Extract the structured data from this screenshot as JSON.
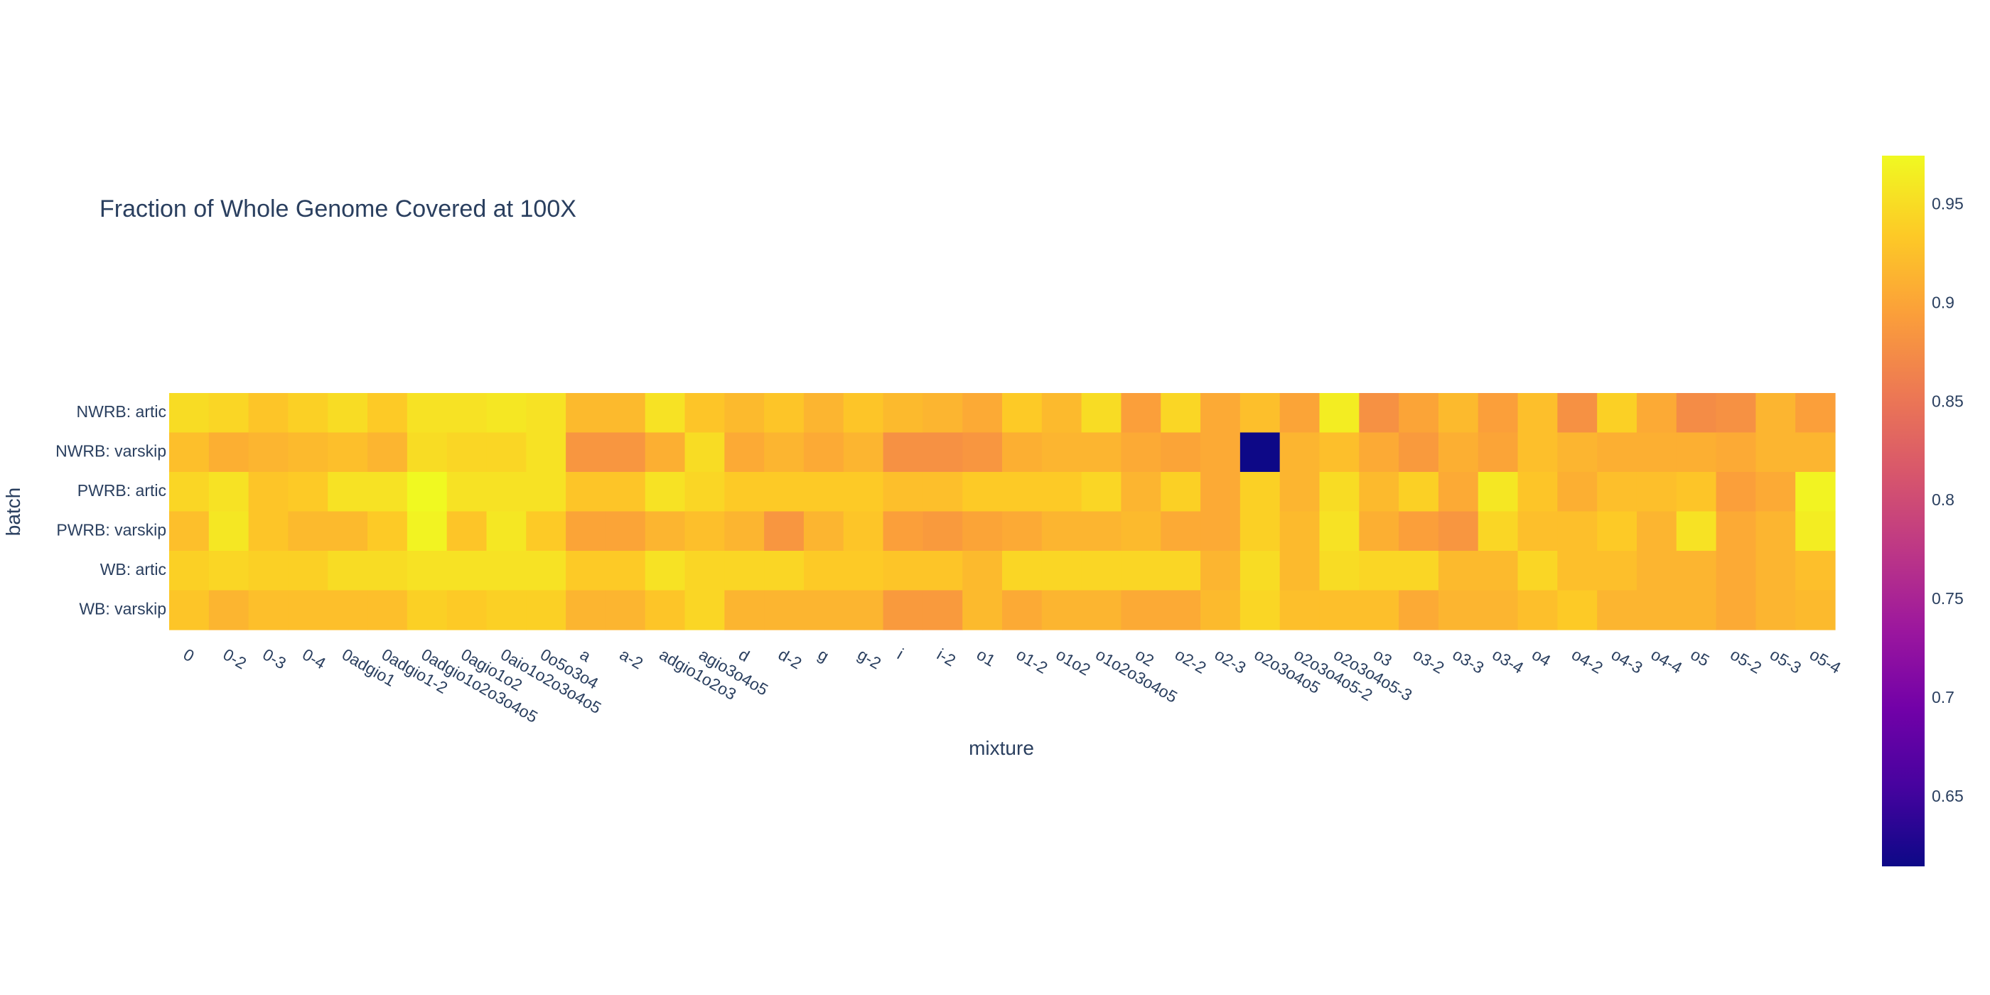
{
  "chart_data": {
    "type": "heatmap",
    "title": "Fraction of Whole Genome Covered at 100X",
    "xlabel": "mixture",
    "ylabel": "batch",
    "x": [
      "0",
      "0-2",
      "0-3",
      "0-4",
      "0adgio1",
      "0adgio1-2",
      "0adgio1o2o3o4o5",
      "0agio1o2",
      "0aio1o2o3o4o5",
      "0o5o3o4",
      "a",
      "a-2",
      "adgio1o2o3",
      "agio3o4o5",
      "d",
      "d-2",
      "g",
      "g-2",
      "i",
      "i-2",
      "o1",
      "o1-2",
      "o1o2",
      "o1o2o3o4o5",
      "o2",
      "o2-2",
      "o2-3",
      "o2o3o4o5",
      "o2o3o4o5-2",
      "o2o3o4o5-3",
      "o3",
      "o3-2",
      "o3-3",
      "o3-4",
      "o4",
      "o4-2",
      "o4-3",
      "o4-4",
      "o5",
      "o5-2",
      "o5-3",
      "o5-4"
    ],
    "y": [
      "NWRB: artic",
      "NWRB: varskip",
      "PWRB: artic",
      "PWRB: varskip",
      "WB: artic",
      "WB: varskip"
    ],
    "z": [
      [
        0.95,
        0.945,
        0.93,
        0.94,
        0.95,
        0.935,
        0.955,
        0.955,
        0.96,
        0.955,
        0.92,
        0.92,
        0.955,
        0.93,
        0.92,
        0.93,
        0.915,
        0.93,
        0.92,
        0.915,
        0.905,
        0.935,
        0.92,
        0.95,
        0.895,
        0.945,
        0.905,
        0.925,
        0.9,
        0.965,
        0.88,
        0.9,
        0.92,
        0.895,
        0.925,
        0.88,
        0.94,
        0.905,
        0.875,
        0.88,
        0.915,
        0.895
      ],
      [
        0.925,
        0.91,
        0.915,
        0.92,
        0.925,
        0.915,
        0.95,
        0.945,
        0.945,
        0.955,
        0.885,
        0.885,
        0.91,
        0.95,
        0.905,
        0.915,
        0.905,
        0.915,
        0.88,
        0.88,
        0.885,
        0.91,
        0.915,
        0.915,
        0.905,
        0.9,
        0.905,
        0.615,
        0.915,
        0.925,
        0.905,
        0.89,
        0.91,
        0.9,
        0.925,
        0.915,
        0.91,
        0.91,
        0.91,
        0.905,
        0.915,
        0.915
      ],
      [
        0.945,
        0.955,
        0.93,
        0.935,
        0.955,
        0.955,
        0.975,
        0.955,
        0.955,
        0.955,
        0.93,
        0.93,
        0.955,
        0.945,
        0.935,
        0.935,
        0.935,
        0.935,
        0.925,
        0.925,
        0.935,
        0.935,
        0.935,
        0.945,
        0.915,
        0.94,
        0.905,
        0.94,
        0.915,
        0.95,
        0.92,
        0.94,
        0.905,
        0.96,
        0.93,
        0.91,
        0.925,
        0.925,
        0.93,
        0.895,
        0.905,
        0.97
      ],
      [
        0.925,
        0.96,
        0.93,
        0.92,
        0.92,
        0.935,
        0.97,
        0.93,
        0.96,
        0.935,
        0.9,
        0.9,
        0.915,
        0.925,
        0.915,
        0.885,
        0.915,
        0.93,
        0.895,
        0.89,
        0.9,
        0.905,
        0.915,
        0.915,
        0.92,
        0.905,
        0.905,
        0.94,
        0.92,
        0.955,
        0.91,
        0.895,
        0.885,
        0.945,
        0.925,
        0.925,
        0.935,
        0.915,
        0.955,
        0.905,
        0.915,
        0.965
      ],
      [
        0.94,
        0.945,
        0.94,
        0.94,
        0.95,
        0.95,
        0.955,
        0.955,
        0.955,
        0.955,
        0.935,
        0.935,
        0.955,
        0.945,
        0.945,
        0.945,
        0.935,
        0.935,
        0.93,
        0.93,
        0.92,
        0.945,
        0.945,
        0.945,
        0.945,
        0.945,
        0.915,
        0.95,
        0.92,
        0.95,
        0.945,
        0.945,
        0.92,
        0.92,
        0.945,
        0.925,
        0.925,
        0.915,
        0.915,
        0.905,
        0.915,
        0.925
      ],
      [
        0.93,
        0.915,
        0.925,
        0.925,
        0.925,
        0.925,
        0.94,
        0.935,
        0.94,
        0.94,
        0.915,
        0.915,
        0.93,
        0.945,
        0.915,
        0.915,
        0.915,
        0.915,
        0.89,
        0.89,
        0.92,
        0.905,
        0.915,
        0.915,
        0.905,
        0.905,
        0.92,
        0.945,
        0.925,
        0.925,
        0.925,
        0.905,
        0.915,
        0.915,
        0.925,
        0.935,
        0.915,
        0.915,
        0.915,
        0.905,
        0.915,
        0.92
      ]
    ],
    "colorbar": {
      "colorscale": "plasma",
      "zmin": 0.615,
      "zmax": 0.975,
      "ticks": [
        "0.65",
        "0.7",
        "0.75",
        "0.8",
        "0.85",
        "0.9",
        "0.95"
      ]
    },
    "colors": [
      "#0d0887",
      "#46039f",
      "#7201a8",
      "#9c179e",
      "#bd3786",
      "#d8576b",
      "#ed7953",
      "#fb9f3a",
      "#fdca26",
      "#f0f921"
    ]
  }
}
